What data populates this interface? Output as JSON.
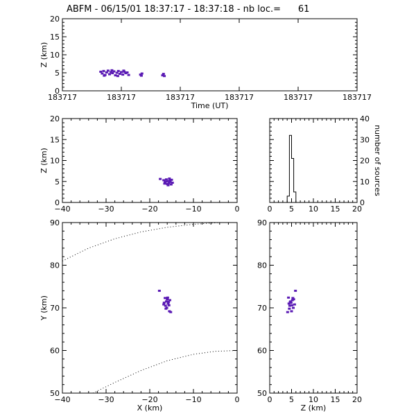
{
  "title": "ABFM - 06/15/01 18:37:17 - 18:37:18 - nb loc.=      61",
  "point_color": "#5a1ab4",
  "chart_data": [
    {
      "id": "time-height",
      "type": "scatter",
      "xlabel": "Time (UT)",
      "ylabel": "Z (km)",
      "ylim": [
        0,
        20
      ],
      "yticks": [
        0,
        5,
        10,
        15,
        20
      ],
      "xlim": [
        0,
        1
      ],
      "xtick_positions": [
        0,
        0.2,
        0.4,
        0.6,
        0.8,
        1.0
      ],
      "xtick_labels": [
        "183717",
        "183717",
        "183717",
        "183717",
        "183717",
        "183717"
      ],
      "points": [
        {
          "t": 0.13,
          "z": 5.3
        },
        {
          "t": 0.135,
          "z": 4.8
        },
        {
          "t": 0.14,
          "z": 5.5
        },
        {
          "t": 0.145,
          "z": 4.4
        },
        {
          "t": 0.15,
          "z": 5.1
        },
        {
          "t": 0.155,
          "z": 5.6
        },
        {
          "t": 0.16,
          "z": 4.6
        },
        {
          "t": 0.165,
          "z": 5.2
        },
        {
          "t": 0.17,
          "z": 4.9
        },
        {
          "t": 0.175,
          "z": 5.4
        },
        {
          "t": 0.18,
          "z": 4.3
        },
        {
          "t": 0.185,
          "z": 5.0
        },
        {
          "t": 0.19,
          "z": 5.5
        },
        {
          "t": 0.195,
          "z": 4.7
        },
        {
          "t": 0.2,
          "z": 5.2
        },
        {
          "t": 0.205,
          "z": 4.5
        },
        {
          "t": 0.21,
          "z": 5.3
        },
        {
          "t": 0.215,
          "z": 4.9
        },
        {
          "t": 0.22,
          "z": 5.1
        },
        {
          "t": 0.225,
          "z": 4.4
        },
        {
          "t": 0.142,
          "z": 4.2
        },
        {
          "t": 0.168,
          "z": 5.7
        },
        {
          "t": 0.188,
          "z": 4.1
        },
        {
          "t": 0.208,
          "z": 5.6
        },
        {
          "t": 0.265,
          "z": 4.5
        },
        {
          "t": 0.268,
          "z": 4.2
        },
        {
          "t": 0.27,
          "z": 4.8
        },
        {
          "t": 0.34,
          "z": 4.3
        },
        {
          "t": 0.343,
          "z": 4.7
        },
        {
          "t": 0.346,
          "z": 4.1
        }
      ]
    },
    {
      "id": "x-z",
      "type": "scatter",
      "xlabel": "",
      "ylabel": "Z (km)",
      "xlim": [
        -40,
        0
      ],
      "ylim": [
        0,
        20
      ],
      "xticks": [
        -40,
        -30,
        -20,
        -10,
        0
      ],
      "yticks": [
        0,
        5,
        10,
        15,
        20
      ],
      "points": [
        {
          "x": -17.6,
          "z": 5.6
        },
        {
          "x": -16.8,
          "z": 5.3
        },
        {
          "x": -16.5,
          "z": 4.8
        },
        {
          "x": -16.2,
          "z": 5.5
        },
        {
          "x": -16.0,
          "z": 4.4
        },
        {
          "x": -15.8,
          "z": 5.1
        },
        {
          "x": -15.6,
          "z": 4.6
        },
        {
          "x": -15.4,
          "z": 5.2
        },
        {
          "x": -15.3,
          "z": 4.9
        },
        {
          "x": -15.1,
          "z": 4.3
        },
        {
          "x": -15.0,
          "z": 5.4
        },
        {
          "x": -15.8,
          "z": 4.1
        },
        {
          "x": -16.3,
          "z": 5.0
        },
        {
          "x": -15.5,
          "z": 5.7
        },
        {
          "x": -14.8,
          "z": 4.7
        },
        {
          "x": -16.6,
          "z": 4.5
        }
      ]
    },
    {
      "id": "height-histogram",
      "type": "bar",
      "xlabel": "",
      "ylabel": "number of sources",
      "xlim": [
        0,
        20
      ],
      "ylim": [
        0,
        40
      ],
      "xticks": [
        0,
        5,
        10,
        15,
        20
      ],
      "yticks": [
        0,
        10,
        20,
        30,
        40
      ],
      "bin_edges": [
        0,
        0.5,
        1,
        1.5,
        2,
        2.5,
        3,
        3.5,
        4,
        4.5,
        5,
        5.5,
        6,
        6.5,
        7,
        7.5,
        8,
        8.5,
        9,
        9.5,
        10,
        10.5,
        11,
        11.5,
        12,
        12.5,
        13,
        13.5,
        14,
        14.5,
        15,
        15.5,
        16,
        16.5,
        17,
        17.5,
        18,
        18.5,
        19,
        19.5,
        20
      ],
      "counts": [
        0,
        0,
        0,
        0,
        0,
        0,
        0,
        0,
        3,
        32,
        21,
        5,
        0,
        0,
        0,
        0,
        0,
        0,
        0,
        0,
        0,
        0,
        0,
        0,
        0,
        0,
        0,
        0,
        0,
        0,
        0,
        0,
        0,
        0,
        0,
        0,
        0,
        0,
        0,
        0
      ]
    },
    {
      "id": "x-y",
      "type": "scatter",
      "xlabel": "X (km)",
      "ylabel": "Y (km)",
      "xlim": [
        -40,
        0
      ],
      "ylim": [
        50,
        90
      ],
      "xticks": [
        -40,
        -30,
        -20,
        -10,
        0
      ],
      "yticks": [
        50,
        60,
        70,
        80,
        90
      ],
      "points": [
        {
          "x": -17.8,
          "y": 74.0
        },
        {
          "x": -16.5,
          "y": 72.3
        },
        {
          "x": -16.2,
          "y": 71.5
        },
        {
          "x": -16.0,
          "y": 72.0
        },
        {
          "x": -15.8,
          "y": 71.0
        },
        {
          "x": -15.6,
          "y": 70.6
        },
        {
          "x": -16.4,
          "y": 70.5
        },
        {
          "x": -15.4,
          "y": 71.8
        },
        {
          "x": -16.7,
          "y": 71.2
        },
        {
          "x": -15.9,
          "y": 72.4
        },
        {
          "x": -16.1,
          "y": 70.0
        },
        {
          "x": -15.5,
          "y": 69.2
        },
        {
          "x": -15.2,
          "y": 69.0
        },
        {
          "x": -16.8,
          "y": 70.8
        },
        {
          "x": -15.7,
          "y": 71.4
        },
        {
          "x": -16.3,
          "y": 69.8
        }
      ],
      "boundary_curves": [
        [
          {
            "x": -40,
            "y": 81.0
          },
          {
            "x": -34,
            "y": 84.0
          },
          {
            "x": -28,
            "y": 86.2
          },
          {
            "x": -22,
            "y": 87.8
          },
          {
            "x": -16,
            "y": 88.9
          },
          {
            "x": -10,
            "y": 89.6
          },
          {
            "x": -4,
            "y": 90.0
          }
        ],
        [
          {
            "x": -33,
            "y": 50.0
          },
          {
            "x": -28,
            "y": 52.5
          },
          {
            "x": -22,
            "y": 55.3
          },
          {
            "x": -16,
            "y": 57.6
          },
          {
            "x": -10,
            "y": 59.1
          },
          {
            "x": -5,
            "y": 59.8
          },
          {
            "x": 0,
            "y": 60.0
          }
        ]
      ]
    },
    {
      "id": "z-y",
      "type": "scatter",
      "xlabel": "Z (km)",
      "ylabel": "",
      "xlim": [
        0,
        20
      ],
      "ylim": [
        50,
        90
      ],
      "xticks": [
        0,
        5,
        10,
        15,
        20
      ],
      "yticks": [
        50,
        60,
        70,
        80,
        90
      ],
      "points": [
        {
          "z": 5.9,
          "y": 74.0
        },
        {
          "z": 5.3,
          "y": 72.3
        },
        {
          "z": 4.8,
          "y": 71.5
        },
        {
          "z": 5.5,
          "y": 72.0
        },
        {
          "z": 4.4,
          "y": 71.0
        },
        {
          "z": 5.1,
          "y": 70.6
        },
        {
          "z": 4.6,
          "y": 70.5
        },
        {
          "z": 5.2,
          "y": 71.8
        },
        {
          "z": 4.9,
          "y": 71.2
        },
        {
          "z": 4.3,
          "y": 72.4
        },
        {
          "z": 5.4,
          "y": 70.0
        },
        {
          "z": 5.0,
          "y": 69.2
        },
        {
          "z": 4.1,
          "y": 69.0
        },
        {
          "z": 5.7,
          "y": 70.8
        },
        {
          "z": 4.7,
          "y": 71.4
        },
        {
          "z": 4.5,
          "y": 69.8
        }
      ]
    }
  ]
}
